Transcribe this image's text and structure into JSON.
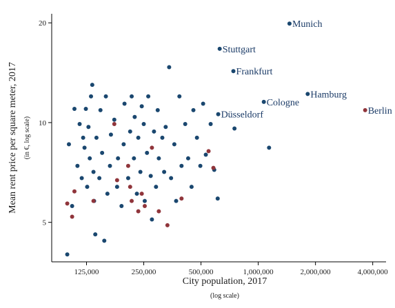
{
  "chart_data": {
    "type": "scatter",
    "x_title": "City population, 2017",
    "x_subtitle": "(log scale)",
    "y_title": "Mean rent price per square meter, 2017",
    "y_subtitle": "(in €, log scale)",
    "log_x": true,
    "log_y": true,
    "grid": false,
    "xlim": [
      82000,
      4700000
    ],
    "xticks": [
      {
        "value": 125000,
        "label": "125,000"
      },
      {
        "value": 250000,
        "label": "250,000"
      },
      {
        "value": 500000,
        "label": "500,000"
      },
      {
        "value": 1000000,
        "label": "1,000,000"
      },
      {
        "value": 2000000,
        "label": "2,000,000"
      },
      {
        "value": 4000000,
        "label": "4,000,000"
      }
    ],
    "ylim": [
      3.8,
      21.3
    ],
    "yticks": [
      5,
      10,
      20
    ],
    "series": [
      {
        "color": "#1a476f",
        "x": [
          99000,
          101000,
          105000,
          108000,
          112000,
          115000,
          118000,
          120000,
          122000,
          124000,
          126000,
          128000,
          130000,
          132000,
          134000,
          136000,
          137000,
          139000,
          141000,
          146000,
          148000,
          151000,
          155000,
          158000,
          161000,
          166000,
          168000,
          175000,
          181000,
          183000,
          191000,
          196000,
          198000,
          207000,
          212000,
          216000,
          222000,
          224000,
          230000,
          234000,
          240000,
          244000,
          250000,
          253000,
          260000,
          264000,
          272000,
          276000,
          283000,
          290000,
          296000,
          300000,
          313000,
          320000,
          326000,
          340000,
          348000,
          362000,
          370000,
          385000,
          395000,
          413000,
          428000,
          446000,
          456000,
          476000,
          496000,
          513000,
          530000,
          562000,
          587000,
          612000,
          750000,
          1140000,
          1460000,
          627000,
          740000,
          1070000,
          1820000,
          616000
        ],
        "values": [
          4.0,
          8.6,
          5.6,
          11.0,
          7.4,
          9.9,
          6.8,
          9.0,
          8.4,
          11.0,
          6.4,
          9.7,
          7.8,
          12.0,
          13.0,
          7.1,
          5.8,
          4.6,
          9.0,
          6.8,
          10.9,
          8.1,
          4.4,
          12.0,
          6.1,
          7.4,
          9.2,
          10.2,
          6.4,
          7.8,
          5.6,
          8.6,
          11.4,
          6.8,
          9.4,
          12.0,
          7.8,
          10.4,
          6.1,
          9.0,
          7.1,
          11.2,
          9.9,
          5.8,
          8.1,
          12.0,
          6.9,
          5.1,
          9.4,
          6.4,
          10.9,
          7.8,
          9.0,
          7.1,
          9.7,
          14.7,
          6.8,
          8.6,
          5.8,
          12.0,
          7.4,
          9.9,
          7.8,
          6.4,
          10.9,
          9.0,
          7.4,
          11.4,
          8.0,
          9.9,
          7.2,
          5.9,
          9.6,
          8.4,
          19.9,
          16.7,
          14.3,
          11.55,
          12.2,
          10.6
        ],
        "labels": [
          null,
          null,
          null,
          null,
          null,
          null,
          null,
          null,
          null,
          null,
          null,
          null,
          null,
          null,
          null,
          null,
          null,
          null,
          null,
          null,
          null,
          null,
          null,
          null,
          null,
          null,
          null,
          null,
          null,
          null,
          null,
          null,
          null,
          null,
          null,
          null,
          null,
          null,
          null,
          null,
          null,
          null,
          null,
          null,
          null,
          null,
          null,
          null,
          null,
          null,
          null,
          null,
          null,
          null,
          null,
          null,
          null,
          null,
          null,
          null,
          null,
          null,
          null,
          null,
          null,
          null,
          null,
          null,
          null,
          null,
          null,
          null,
          null,
          null,
          "Munich",
          "Stuttgart",
          "Frankfurt",
          "Cologne",
          "Hamburg",
          "Düsseldorf"
        ]
      },
      {
        "color": "#90353b",
        "x": [
          99000,
          105000,
          108000,
          136000,
          175000,
          181000,
          207000,
          212000,
          216000,
          234000,
          244000,
          253000,
          276000,
          300000,
          333000,
          395000,
          548000,
          581000,
          3650000
        ],
        "values": [
          5.7,
          5.2,
          6.2,
          5.8,
          9.9,
          6.7,
          7.4,
          6.4,
          5.8,
          5.4,
          6.1,
          5.6,
          8.4,
          5.4,
          4.9,
          5.9,
          8.2,
          7.3,
          10.9
        ],
        "labels": [
          null,
          null,
          null,
          null,
          null,
          null,
          null,
          null,
          null,
          null,
          null,
          null,
          null,
          null,
          null,
          null,
          null,
          null,
          "Berlin"
        ]
      }
    ]
  }
}
